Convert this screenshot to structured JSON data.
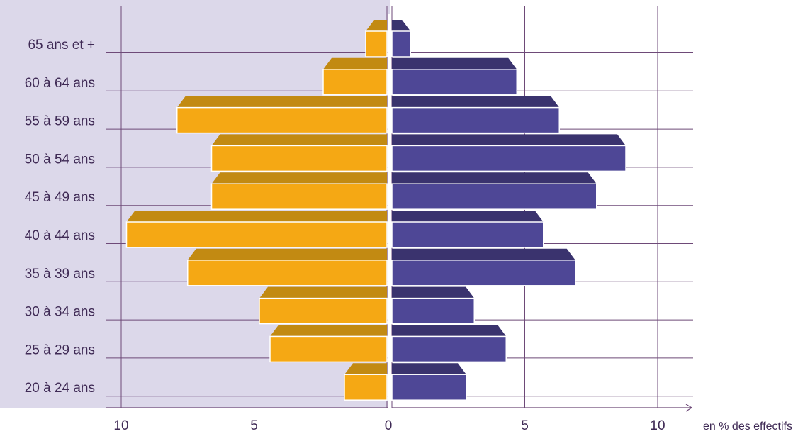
{
  "chart_data": {
    "type": "bar",
    "orientation": "horizontal",
    "layout": "population-pyramid",
    "categories": [
      "65 ans et +",
      "60 à 64 ans",
      "55 à 59 ans",
      "50 à 54 ans",
      "45 à 49 ans",
      "40 à 44 ans",
      "35 à 39 ans",
      "30 à 34 ans",
      "25 à 29 ans",
      "20 à 24 ans"
    ],
    "series": [
      {
        "side": "left",
        "color": "#f5a814",
        "values": [
          0.8,
          2.4,
          7.9,
          6.6,
          6.6,
          9.8,
          7.5,
          4.8,
          4.4,
          1.6
        ]
      },
      {
        "side": "right",
        "color": "#4e4796",
        "values": [
          0.7,
          4.7,
          6.3,
          8.8,
          7.7,
          5.7,
          6.9,
          3.1,
          4.3,
          2.8
        ]
      }
    ],
    "x_ticks": [
      "10",
      "5",
      "0",
      "5",
      "10"
    ],
    "xlim": [
      0,
      10
    ],
    "unit_label": "en % des effectifs",
    "grid": true,
    "colors": {
      "left_background": "#dcd8ea",
      "grid": "#6e4a78",
      "left_bar_top": "#c28a12",
      "right_bar_top": "#3a336e"
    }
  }
}
